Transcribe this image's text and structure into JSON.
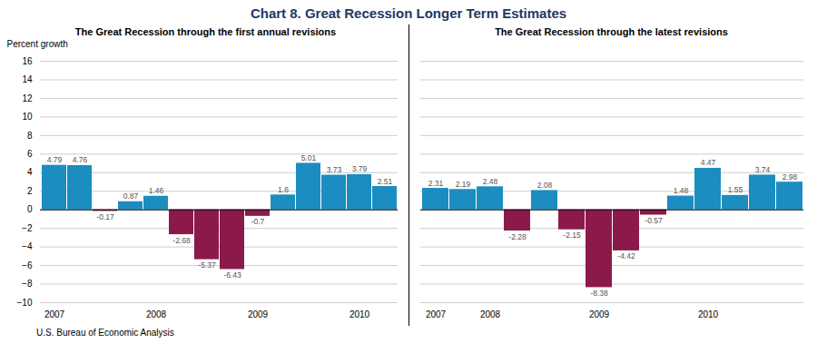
{
  "title": "Chart 8. Great Recession Longer Term Estimates",
  "annotations": [
    "U.S. Bureau of Economic Analysis"
  ],
  "chart_data": [
    {
      "type": "bar",
      "title": "The Great Recession through the first annual revisions",
      "ylabel": "Percent growth",
      "categories": [
        "2007",
        null,
        null,
        null,
        "2008",
        null,
        null,
        null,
        "2009",
        null,
        null,
        null,
        "2010",
        null
      ],
      "values": [
        4.79,
        4.76,
        -0.17,
        0.87,
        1.46,
        -2.68,
        -5.37,
        -6.43,
        -0.7,
        1.6,
        5.01,
        3.73,
        3.79,
        2.51
      ],
      "colors": [
        "#1B8DC0",
        "#1B8DC0",
        "#8B1A4A",
        "#1B8DC0",
        "#1B8DC0",
        "#8B1A4A",
        "#8B1A4A",
        "#8B1A4A",
        "#8B1A4A",
        "#1B8DC0",
        "#1B8DC0",
        "#1B8DC0",
        "#1B8DC0",
        "#1B8DC0"
      ],
      "ylim": [
        -10,
        16
      ],
      "yticks": [
        -10,
        -8,
        -6,
        -4,
        -2,
        0,
        2,
        4,
        6,
        8,
        10,
        12,
        14,
        16
      ],
      "grid": true,
      "data_labels": true
    },
    {
      "type": "bar",
      "title": "The Great Recession through the latest revisions",
      "categories": [
        "2007",
        null,
        "2008",
        null,
        null,
        null,
        "2009",
        null,
        null,
        null,
        "2010",
        null,
        null,
        null
      ],
      "values": [
        2.31,
        2.19,
        2.48,
        -2.28,
        2.08,
        -2.15,
        -8.38,
        -4.42,
        -0.57,
        1.48,
        4.47,
        1.55,
        3.74,
        2.98
      ],
      "colors": [
        "#1B8DC0",
        "#1B8DC0",
        "#1B8DC0",
        "#8B1A4A",
        "#1B8DC0",
        "#8B1A4A",
        "#8B1A4A",
        "#8B1A4A",
        "#8B1A4A",
        "#1B8DC0",
        "#1B8DC0",
        "#1B8DC0",
        "#1B8DC0",
        "#1B8DC0"
      ],
      "ylim": [
        -10,
        16
      ],
      "yticks": [
        -10,
        -8,
        -6,
        -4,
        -2,
        0,
        2,
        4,
        6,
        8,
        10,
        12,
        14,
        16
      ],
      "grid": true,
      "data_labels": true,
      "tick_labels": "x"
    }
  ]
}
